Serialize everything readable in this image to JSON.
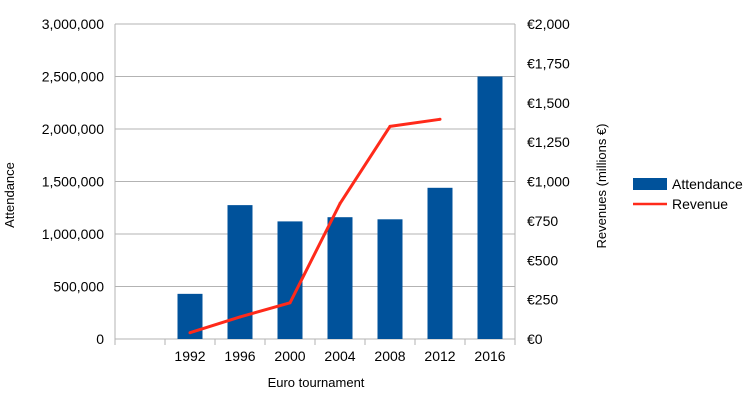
{
  "chart_data": {
    "type": "bar",
    "categories": [
      "",
      "1992",
      "1996",
      "2000",
      "2004",
      "2008",
      "2012",
      "2016"
    ],
    "series": [
      {
        "name": "Attendance",
        "type": "bar",
        "axis": "left",
        "color": "#00529b",
        "values": [
          null,
          430000,
          1275000,
          1120000,
          1160000,
          1140000,
          1440000,
          2500000
        ]
      },
      {
        "name": "Revenue",
        "type": "line",
        "axis": "right",
        "color": "#ff2a1a",
        "values": [
          null,
          40,
          140,
          230,
          860,
          1350,
          1395,
          null
        ]
      }
    ],
    "xlabel": "Euro tournament",
    "ylabel": "Attendance",
    "y2label": "Revenues  (millions €)",
    "ylim": [
      0,
      3000000
    ],
    "y2lim": [
      0,
      2000
    ],
    "yticks": [
      "0",
      "500,000",
      "1,000,000",
      "1,500,000",
      "2,000,000",
      "2,500,000",
      "3,000,000"
    ],
    "y2ticks": [
      "€0",
      "€250",
      "€500",
      "€750",
      "€1,000",
      "€1,250",
      "€1,500",
      "€1,750",
      "€2,000"
    ],
    "grid": "horizontal",
    "legend_position": "right"
  }
}
